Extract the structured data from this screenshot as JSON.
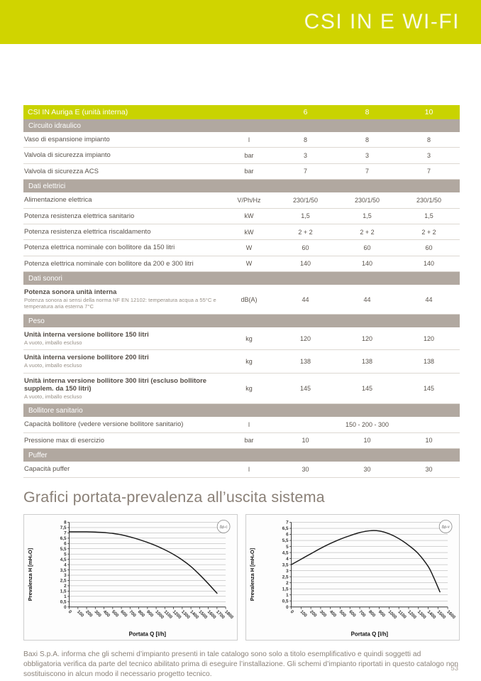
{
  "banner": {
    "title": "CSI IN E WI-FI"
  },
  "heading": "Grafici portata-prevalenza all’uscita sistema",
  "table": {
    "title": "CSI IN Auriga E (unità interna)",
    "columns": [
      "6",
      "8",
      "10"
    ],
    "sections": [
      {
        "title": "Circuito idraulico",
        "rows": [
          {
            "label": "Vaso di espansione impianto",
            "unit": "l",
            "values": [
              "8",
              "8",
              "8"
            ]
          },
          {
            "label": "Valvola di sicurezza impianto",
            "unit": "bar",
            "values": [
              "3",
              "3",
              "3"
            ]
          },
          {
            "label": "Valvola di sicurezza ACS",
            "unit": "bar",
            "values": [
              "7",
              "7",
              "7"
            ]
          }
        ]
      },
      {
        "title": "Dati elettrici",
        "rows": [
          {
            "label": "Alimentazione elettrica",
            "unit": "V/Ph/Hz",
            "values": [
              "230/1/50",
              "230/1/50",
              "230/1/50"
            ]
          },
          {
            "label": "Potenza resistenza elettrica sanitario",
            "unit": "kW",
            "values": [
              "1,5",
              "1,5",
              "1,5"
            ]
          },
          {
            "label": "Potenza resistenza elettrica riscaldamento",
            "unit": "kW",
            "values": [
              "2 + 2",
              "2 + 2",
              "2 + 2"
            ]
          },
          {
            "label": "Potenza elettrica nominale con bollitore da 150 litri",
            "unit": "W",
            "values": [
              "60",
              "60",
              "60"
            ]
          },
          {
            "label": "Potenza elettrica nominale con bollitore da 200 e 300 litri",
            "unit": "W",
            "values": [
              "140",
              "140",
              "140"
            ]
          }
        ]
      },
      {
        "title": "Dati sonori",
        "rows": [
          {
            "label": "Potenza sonora unità interna",
            "sublabel": "Potenza sonora ai sensi della norma NF EN 12102: temperatura acqua a 55°C e temperatura aria esterna 7°C",
            "unit": "dB(A)",
            "values": [
              "44",
              "44",
              "44"
            ]
          }
        ]
      },
      {
        "title": "Peso",
        "rows": [
          {
            "label": "Unità interna versione bollitore 150 litri",
            "sublabel": "A vuoto, imballo escluso",
            "unit": "kg",
            "values": [
              "120",
              "120",
              "120"
            ]
          },
          {
            "label": "Unità interna versione bollitore 200 litri",
            "sublabel": "A vuoto, imballo escluso",
            "unit": "kg",
            "values": [
              "138",
              "138",
              "138"
            ]
          },
          {
            "label": "Unità interna versione bollitore 300 litri (escluso bollitore supplem. da 150 litri)",
            "sublabel": "A vuoto, imballo escluso",
            "unit": "kg",
            "values": [
              "145",
              "145",
              "145"
            ]
          }
        ]
      },
      {
        "title": "Bollitore sanitario",
        "rows": [
          {
            "label": "Capacità bollitore (vedere versione bollitore sanitario)",
            "unit": "l",
            "values_span": "150 - 200 - 300"
          },
          {
            "label": "Pressione max di esercizio",
            "unit": "bar",
            "values": [
              "10",
              "10",
              "10"
            ]
          }
        ]
      },
      {
        "title": "Puffer",
        "rows": [
          {
            "label": "Capacità puffer",
            "unit": "l",
            "values": [
              "30",
              "30",
              "30"
            ]
          }
        ]
      }
    ]
  },
  "chart_data": [
    {
      "type": "line",
      "badge": "Δp-c",
      "xlabel": "Portata  Q [l/h]",
      "ylabel": "Prevalenza  H [mH₂O]",
      "xlim": [
        0,
        1800
      ],
      "xstep": 100,
      "ylim": [
        0,
        8
      ],
      "ystep": 0.5,
      "grid": "horizontal",
      "legend": "none",
      "x": [
        0,
        100,
        200,
        300,
        400,
        500,
        600,
        700,
        800,
        900,
        1000,
        1100,
        1200,
        1300,
        1400,
        1500,
        1600,
        1700
      ],
      "y": [
        7.1,
        7.1,
        7.1,
        7.08,
        7.03,
        6.95,
        6.82,
        6.62,
        6.38,
        6.1,
        5.78,
        5.4,
        4.97,
        4.45,
        3.82,
        3.05,
        2.2,
        1.3
      ]
    },
    {
      "type": "line",
      "badge": "Δp-v",
      "xlabel": "Portata  Q [l/h]",
      "ylabel": "Prevalenza  H [mH₂O]",
      "xlim": [
        0,
        1600
      ],
      "xstep": 100,
      "ylim": [
        0,
        7
      ],
      "ystep": 0.5,
      "grid": "horizontal",
      "legend": "none",
      "x": [
        0,
        100,
        200,
        300,
        400,
        500,
        600,
        700,
        800,
        900,
        1000,
        1100,
        1200,
        1300,
        1400,
        1450,
        1520
      ],
      "y": [
        3.5,
        3.95,
        4.4,
        4.85,
        5.25,
        5.6,
        5.9,
        6.15,
        6.3,
        6.28,
        6.05,
        5.65,
        5.1,
        4.4,
        3.35,
        2.55,
        1.25
      ]
    }
  ],
  "footer": {
    "note": "Baxi S.p.A. informa che gli schemi d’impianto presenti in tale catalogo sono solo a titolo esemplificativo e quindi soggetti ad obbligatoria verifica da parte del tecnico abilitato prima di eseguire l’installazione. Gli schemi d’impianto riportati in questo catalogo non sostituiscono in alcun modo il necessario progetto tecnico.",
    "page_number": "53"
  },
  "colors": {
    "brand_lime": "#d0d400",
    "table_header_lime": "#c9d300",
    "section_bar_taupe": "#b1a8a0",
    "text_dark": "#5a534c",
    "text_muted": "#8b8279",
    "curve": "#1c1c1c"
  }
}
